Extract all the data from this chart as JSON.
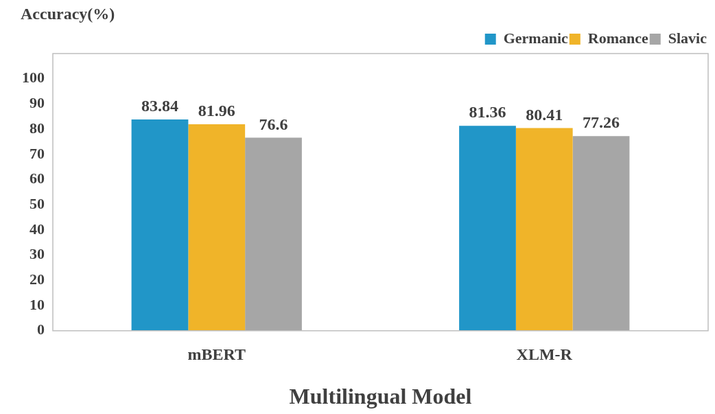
{
  "chart_data": {
    "type": "bar",
    "ylabel": "Accuracy(%)",
    "xlabel": "Multilingual Model",
    "categories": [
      "mBERT",
      "XLM-R"
    ],
    "series": [
      {
        "name": "Germanic",
        "color": "#2196c8",
        "values": [
          83.84,
          81.36
        ]
      },
      {
        "name": "Romance",
        "color": "#f0b429",
        "values": [
          81.96,
          80.41
        ]
      },
      {
        "name": "Slavic",
        "color": "#a6a6a6",
        "values": [
          76.6,
          77.26
        ]
      }
    ],
    "ylim": [
      0,
      110
    ],
    "yticks": [
      0,
      10,
      20,
      30,
      40,
      50,
      60,
      70,
      80,
      90,
      100
    ],
    "grid": false,
    "legend": "top right",
    "data_labels": true
  }
}
